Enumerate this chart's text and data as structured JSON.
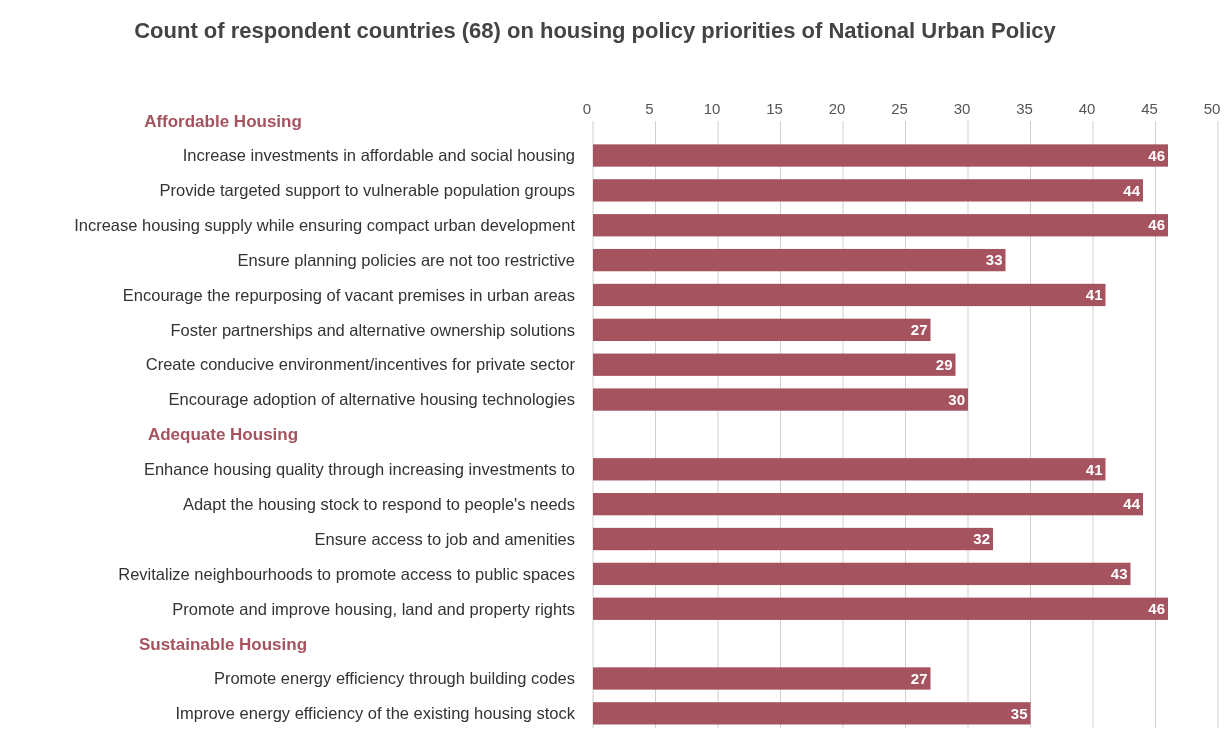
{
  "chart_data": {
    "type": "bar",
    "orientation": "horizontal",
    "title": "Count of respondent countries (68) on housing policy priorities of National Urban Policy",
    "annotations": [
      "Affordable Housing",
      "Adequate Housing",
      "Sustainable Housing"
    ],
    "categories": [
      null,
      "Increase investments in affordable and social housing",
      "Provide targeted support to vulnerable population groups",
      "Increase housing supply while ensuring compact urban development",
      "Ensure planning policies are not too restrictive",
      "Encourage the repurposing of vacant premises in urban areas",
      "Foster partnerships and alternative ownership solutions",
      "Create conducive environment/incentives for private sector",
      "Encourage adoption of alternative housing technologies",
      null,
      "Enhance housing quality through increasing investments to",
      "Adapt the housing stock to respond to people's needs",
      "Ensure access to job and amenities",
      "Revitalize neighbourhoods to promote  access to public spaces",
      "Promote and improve housing, land and property rights",
      null,
      "Promote energy efficiency through building codes",
      "Improve energy efficiency of the existing housing stock"
    ],
    "values": [
      null,
      46,
      44,
      46,
      33,
      41,
      27,
      29,
      30,
      null,
      41,
      44,
      32,
      43,
      46,
      null,
      27,
      35
    ],
    "color": "#a5535e",
    "xlim": [
      0,
      50
    ],
    "xticks": [
      0,
      5,
      10,
      15,
      20,
      25,
      30,
      35,
      40,
      45,
      50
    ],
    "grid": "x",
    "data_labels": true
  }
}
